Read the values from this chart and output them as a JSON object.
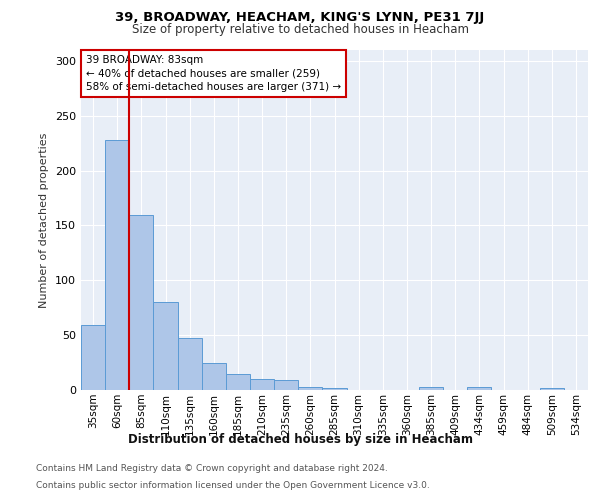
{
  "title": "39, BROADWAY, HEACHAM, KING'S LYNN, PE31 7JJ",
  "subtitle": "Size of property relative to detached houses in Heacham",
  "xlabel": "Distribution of detached houses by size in Heacham",
  "ylabel": "Number of detached properties",
  "footer_line1": "Contains HM Land Registry data © Crown copyright and database right 2024.",
  "footer_line2": "Contains public sector information licensed under the Open Government Licence v3.0.",
  "bar_color": "#aec6e8",
  "bar_edge_color": "#5b9bd5",
  "marker_color": "#cc0000",
  "background_color": "#e8eef7",
  "annotation_box_color": "#cc0000",
  "annotation_text": "39 BROADWAY: 83sqm\n← 40% of detached houses are smaller (259)\n58% of semi-detached houses are larger (371) →",
  "property_sqm": 83,
  "marker_bin_index": 2,
  "categories": [
    "35sqm",
    "60sqm",
    "85sqm",
    "110sqm",
    "135sqm",
    "160sqm",
    "185sqm",
    "210sqm",
    "235sqm",
    "260sqm",
    "285sqm",
    "310sqm",
    "335sqm",
    "360sqm",
    "385sqm",
    "409sqm",
    "434sqm",
    "459sqm",
    "484sqm",
    "509sqm",
    "534sqm"
  ],
  "values": [
    59,
    228,
    160,
    80,
    47,
    25,
    15,
    10,
    9,
    3,
    2,
    0,
    0,
    0,
    3,
    0,
    3,
    0,
    0,
    2,
    0
  ],
  "ylim": [
    0,
    310
  ],
  "yticks": [
    0,
    50,
    100,
    150,
    200,
    250,
    300
  ],
  "title_fontsize": 9.5,
  "subtitle_fontsize": 8.5,
  "ylabel_fontsize": 8,
  "xlabel_fontsize": 8.5,
  "tick_fontsize": 7.5,
  "footer_fontsize": 6.5
}
